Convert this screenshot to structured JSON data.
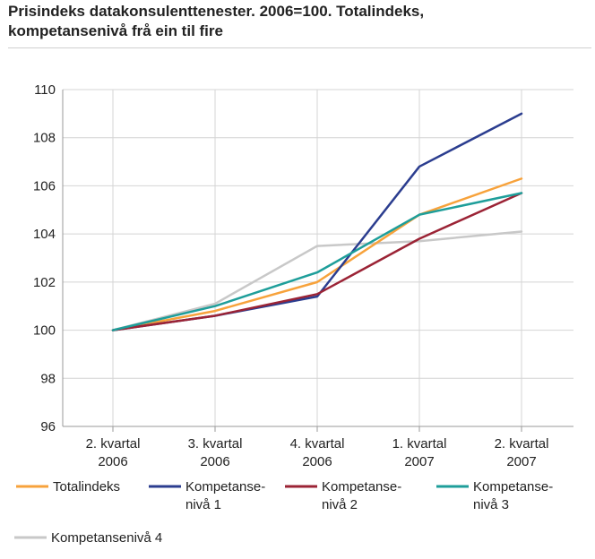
{
  "chart_data": {
    "type": "line",
    "title_lines": [
      "Prisindeks datakonsulenttenester. 2006=100. Totalindeks,",
      "kompetansenivå frå ein til fire"
    ],
    "categories": [
      [
        "2. kvartal",
        "2006"
      ],
      [
        "3. kvartal",
        "2006"
      ],
      [
        "4. kvartal",
        "2006"
      ],
      [
        "1. kvartal",
        "2007"
      ],
      [
        "2. kvartal",
        "2007"
      ]
    ],
    "ylim": [
      96,
      110
    ],
    "yticks": [
      "96",
      "98",
      "100",
      "102",
      "104",
      "106",
      "108",
      "110"
    ],
    "grid": true,
    "legend_position": "bottom",
    "series": [
      {
        "name": [
          "Totalindeks"
        ],
        "color": "#f7a23b",
        "values": [
          100.0,
          100.8,
          102.0,
          104.8,
          106.3
        ]
      },
      {
        "name": [
          "Kompetanse-",
          "nivå 1"
        ],
        "color": "#2b3d8f",
        "values": [
          100.0,
          100.6,
          101.4,
          106.8,
          109.0
        ]
      },
      {
        "name": [
          "Kompetanse-",
          "nivå 2"
        ],
        "color": "#9b2335",
        "values": [
          100.0,
          100.6,
          101.5,
          103.8,
          105.7
        ]
      },
      {
        "name": [
          "Kompetanse-",
          "nivå 3"
        ],
        "color": "#1e9e9a",
        "values": [
          100.0,
          101.0,
          102.4,
          104.8,
          105.7
        ]
      },
      {
        "name": [
          "Kompetansenivå 4"
        ],
        "color": "#c8c8c8",
        "values": [
          100.0,
          101.1,
          103.5,
          103.7,
          104.1
        ]
      }
    ]
  }
}
